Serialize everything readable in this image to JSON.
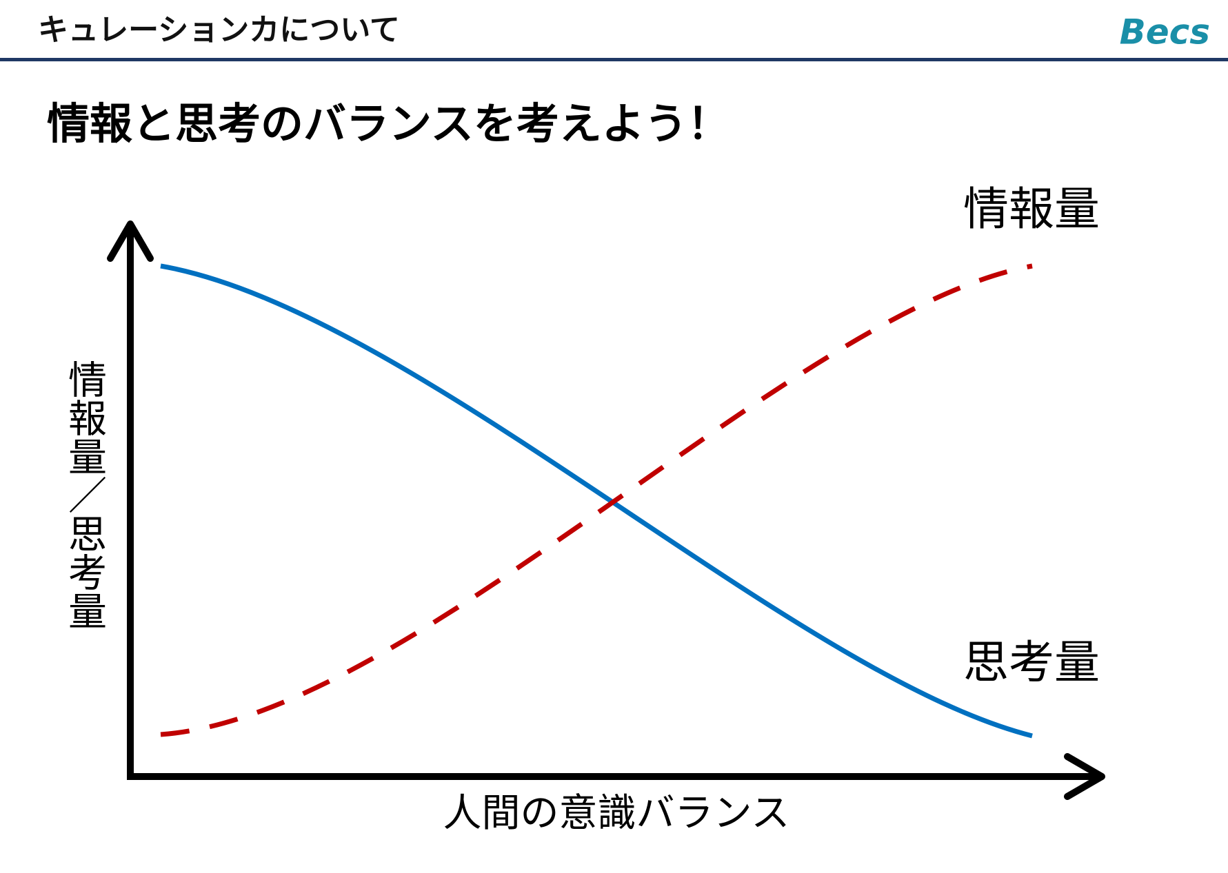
{
  "header": {
    "title": "キュレーションカについて",
    "logo": "Becs"
  },
  "title": "情報と思考のバランスを考えよう！",
  "diagram": {
    "y_axis_label": "情報量／思考量",
    "x_axis_label": "人間の意識バランス",
    "curves": [
      {
        "label": "情報量"
      },
      {
        "label": "思考量"
      }
    ]
  }
}
